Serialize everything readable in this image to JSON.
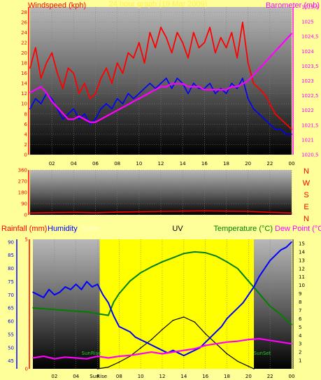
{
  "chart_data": [
    {
      "type": "line",
      "title": "24 hour graph (19 Mar 2009)",
      "ylabel_left": "Windspeed (kph)",
      "ylabel_right": "Barometer (mb)",
      "x_ticks": [
        "02",
        "04",
        "06",
        "08",
        "10",
        "12",
        "14",
        "16",
        "18",
        "20",
        "22",
        "00"
      ],
      "y_left_ticks": [
        "0",
        "2",
        "4",
        "6",
        "8",
        "10",
        "12",
        "14",
        "16",
        "18",
        "20",
        "22",
        "24",
        "26",
        "28"
      ],
      "y_right_ticks": [
        "1020,5",
        "1021",
        "1021,5",
        "1022",
        "1022,5",
        "1023",
        "1023,5",
        "1024",
        "1024,5",
        "1025",
        "1025,5"
      ],
      "ylim_left": [
        0,
        29
      ],
      "ylim_right": [
        1020.5,
        1025.5
      ],
      "series": [
        {
          "name": "Gust",
          "axis": "left",
          "color": "#ff0000",
          "x": [
            0,
            0.5,
            1,
            1.5,
            2,
            2.5,
            3,
            3.5,
            4,
            4.5,
            5,
            5.5,
            6,
            6.5,
            7,
            7.5,
            8,
            8.5,
            9,
            9.5,
            10,
            10.5,
            11,
            11.5,
            12,
            12.5,
            13,
            13.5,
            14,
            14.5,
            15,
            15.5,
            16,
            16.5,
            17,
            17.5,
            18,
            18.5,
            19,
            19.5,
            20,
            20.5,
            21,
            21.5,
            22,
            22.5,
            23,
            23.5,
            24
          ],
          "y": [
            17,
            21,
            15,
            18,
            20,
            16,
            13,
            17,
            16,
            12,
            14,
            11,
            12,
            15,
            17,
            14,
            18,
            16,
            20,
            19,
            22,
            18,
            24,
            21,
            25,
            23,
            20,
            24,
            22,
            19,
            24,
            21,
            22,
            25,
            20,
            23,
            21,
            24,
            19,
            26,
            18,
            14,
            13,
            12,
            10,
            8,
            7,
            6,
            5
          ]
        },
        {
          "name": "Average",
          "axis": "left",
          "color": "#0000ff",
          "x": [
            0,
            0.5,
            1,
            1.5,
            2,
            2.5,
            3,
            3.5,
            4,
            4.5,
            5,
            5.5,
            6,
            6.5,
            7,
            7.5,
            8,
            8.5,
            9,
            9.5,
            10,
            10.5,
            11,
            11.5,
            12,
            12.5,
            13,
            13.5,
            14,
            14.5,
            15,
            15.5,
            16,
            16.5,
            17,
            17.5,
            18,
            18.5,
            19,
            19.5,
            20,
            20.5,
            21,
            21.5,
            22,
            22.5,
            23,
            23.5,
            24
          ],
          "y": [
            9,
            11,
            10,
            12,
            11,
            9,
            7,
            8,
            9,
            7,
            8,
            6,
            7,
            9,
            10,
            9,
            11,
            10,
            12,
            11,
            12,
            13,
            14,
            13,
            14,
            15,
            13,
            15,
            14,
            12,
            14,
            13,
            13,
            14,
            12,
            13,
            12,
            14,
            13,
            15,
            11,
            9,
            8,
            7,
            6,
            5,
            5,
            4,
            4
          ]
        },
        {
          "name": "Barometer",
          "axis": "right",
          "color": "#ff00ff",
          "x": [
            0,
            0.5,
            1,
            1.5,
            2,
            2.5,
            3,
            3.5,
            4,
            4.5,
            5,
            5.5,
            6,
            6.5,
            7,
            7.5,
            8,
            8.5,
            9,
            9.5,
            10,
            10.5,
            11,
            11.5,
            12,
            12.5,
            13,
            13.5,
            14,
            14.5,
            15,
            15.5,
            16,
            16.5,
            17,
            17.5,
            18,
            18.5,
            19,
            19.5,
            20,
            20.5,
            21,
            21.5,
            22,
            22.5,
            23,
            23.5,
            24
          ],
          "y": [
            1022.6,
            1022.7,
            1022.8,
            1022.6,
            1022.3,
            1022.1,
            1021.9,
            1021.7,
            1021.7,
            1021.8,
            1021.7,
            1021.6,
            1021.6,
            1021.7,
            1021.8,
            1021.9,
            1022.0,
            1022.1,
            1022.2,
            1022.3,
            1022.4,
            1022.5,
            1022.6,
            1022.7,
            1022.8,
            1022.8,
            1022.9,
            1022.9,
            1022.9,
            1022.8,
            1022.8,
            1022.8,
            1022.7,
            1022.7,
            1022.7,
            1022.7,
            1022.7,
            1022.8,
            1022.8,
            1022.9,
            1023.0,
            1023.2,
            1023.4,
            1023.6,
            1023.8,
            1024.0,
            1024.2,
            1024.4,
            1024.6
          ]
        }
      ]
    },
    {
      "type": "line",
      "ylabel_right": [
        "N",
        "W",
        "S",
        "E",
        "N"
      ],
      "x_ticks": [
        "02",
        "04",
        "06",
        "08",
        "10",
        "12",
        "14",
        "16",
        "18",
        "20",
        "22",
        "00"
      ],
      "y_ticks": [
        "0",
        "90",
        "180",
        "270",
        "360"
      ],
      "ylim": [
        0,
        360
      ],
      "series": [
        {
          "name": "Wind direction",
          "color": "#ff0000",
          "x": [
            0,
            2,
            4,
            6,
            8,
            10,
            12,
            14,
            16,
            18,
            20,
            22,
            24
          ],
          "y": [
            15,
            18,
            20,
            17,
            22,
            25,
            28,
            30,
            32,
            30,
            28,
            20,
            15
          ]
        }
      ]
    },
    {
      "type": "line",
      "labels": [
        "Rainfall (mm)",
        "Humidity",
        "Solar",
        "UV",
        "Temperature (°C)",
        "Dew Point (°C)"
      ],
      "x_ticks": [
        "02",
        "04",
        "Sun",
        "Rise",
        "08",
        "10",
        "12",
        "14",
        "16",
        "18",
        "20",
        "22",
        "00"
      ],
      "y_left_ticks": [
        "45",
        "50",
        "55",
        "60",
        "65",
        "70",
        "75",
        "80",
        "85",
        "90"
      ],
      "y_rain_ticks": [
        "0",
        "5"
      ],
      "y_right_ticks": [
        "1",
        "2",
        "3",
        "4",
        "5",
        "6",
        "7",
        "8",
        "9",
        "10",
        "11",
        "12",
        "13",
        "14",
        "15"
      ],
      "ylim_left": [
        42,
        91
      ],
      "ylim_right": [
        0,
        15.5
      ],
      "annotations": [
        "SunRise",
        "SunSet"
      ],
      "daylight": [
        6.2,
        20.5
      ],
      "series": [
        {
          "name": "Humidity",
          "axis": "left",
          "color": "#0000ff",
          "x": [
            0,
            0.5,
            1,
            1.5,
            2,
            2.5,
            3,
            3.5,
            4,
            4.5,
            5,
            5.5,
            6,
            6.5,
            7,
            7.5,
            8,
            8.5,
            9,
            9.5,
            10,
            10.5,
            11,
            11.5,
            12,
            12.5,
            13,
            13.5,
            14,
            14.5,
            15,
            15.5,
            16,
            16.5,
            17,
            17.5,
            18,
            18.5,
            19,
            19.5,
            20,
            20.5,
            21,
            21.5,
            22,
            22.5,
            23,
            23.5,
            24
          ],
          "y": [
            71,
            70,
            69,
            72,
            70,
            71,
            73,
            72,
            74,
            72,
            75,
            73,
            74,
            70,
            67,
            62,
            58,
            57,
            56,
            54,
            53,
            52,
            51,
            50,
            49,
            48,
            49,
            48,
            47,
            48,
            49,
            50,
            52,
            54,
            56,
            58,
            61,
            63,
            65,
            67,
            70,
            73,
            77,
            80,
            83,
            85,
            87,
            88,
            90
          ]
        },
        {
          "name": "Temperature",
          "axis": "right",
          "color": "#008000",
          "x": [
            0,
            1,
            2,
            3,
            4,
            5,
            6,
            7,
            7.5,
            8,
            9,
            10,
            11,
            12,
            13,
            14,
            15,
            16,
            17,
            18,
            19,
            20,
            21,
            22,
            23,
            24
          ],
          "y": [
            7.3,
            7.2,
            7.1,
            7.0,
            6.9,
            6.8,
            6.6,
            6.4,
            8,
            9,
            10.5,
            11.5,
            12.2,
            12.8,
            13.3,
            13.8,
            14.0,
            13.9,
            13.5,
            12.8,
            12.0,
            10.5,
            9,
            7.5,
            6.5,
            5.3
          ]
        },
        {
          "name": "Dew Point",
          "axis": "right",
          "color": "#ff00ff",
          "x": [
            0,
            1,
            2,
            3,
            4,
            5,
            6,
            7,
            8,
            9,
            10,
            11,
            12,
            13,
            14,
            15,
            16,
            17,
            18,
            19,
            20,
            21,
            22,
            23,
            24
          ],
          "y": [
            1.3,
            1.5,
            1.2,
            1.4,
            1.3,
            1.2,
            1.5,
            1.3,
            1.5,
            1.6,
            1.8,
            2.0,
            1.8,
            2.0,
            2.2,
            2.4,
            2.8,
            3.0,
            3.2,
            3.3,
            3.5,
            3.6,
            3.4,
            3.2,
            3.0
          ]
        },
        {
          "name": "Solar",
          "axis": "right",
          "color": "#000000",
          "x": [
            6,
            7,
            8,
            9,
            10,
            11,
            12,
            13,
            14,
            15,
            16,
            17,
            18,
            19,
            20,
            20.5
          ],
          "y": [
            0,
            0.2,
            0.8,
            1.5,
            2.5,
            3.5,
            4.7,
            5.8,
            6.2,
            5.6,
            4.2,
            3.0,
            1.8,
            0.9,
            0.3,
            0
          ]
        }
      ]
    }
  ],
  "colors": {
    "windspeed_label": "#ff0000",
    "barometer_label": "#ff00ff",
    "title": "#ffee55",
    "rain_label": "#ff0000",
    "humidity_label": "#0000ff",
    "solar_label": "#ffffcc",
    "uv_label": "#000000",
    "temp_label": "#008000",
    "dew_label": "#ff00ff",
    "daylight": "#ffff00"
  }
}
